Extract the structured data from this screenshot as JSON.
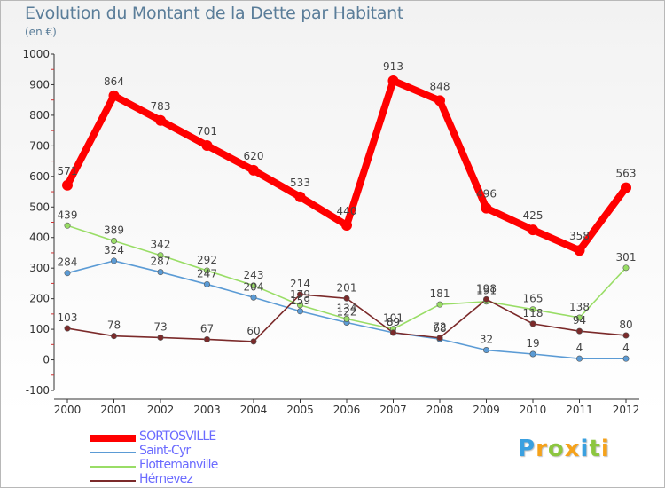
{
  "title": "Evolution du Montant de la Dette par Habitant",
  "subtitle": "(en €)",
  "chart_data": {
    "type": "line",
    "x": [
      "2000",
      "2001",
      "2002",
      "2003",
      "2004",
      "2005",
      "2006",
      "2007",
      "2008",
      "2009",
      "2010",
      "2011",
      "2012"
    ],
    "ylim": [
      -100,
      1000
    ],
    "yticks": [
      -100,
      0,
      100,
      200,
      300,
      400,
      500,
      600,
      700,
      800,
      900,
      1000
    ],
    "grid": false,
    "legend_position": "bottom-left",
    "series": [
      {
        "name": "SORTOSVILLE",
        "color": "#ff0000",
        "values": [
          571,
          864,
          783,
          701,
          620,
          533,
          440,
          913,
          848,
          496,
          425,
          358,
          563
        ]
      },
      {
        "name": "Saint-Cyr",
        "color": "#5b9bd5",
        "values": [
          284,
          324,
          287,
          247,
          204,
          159,
          122,
          89,
          68,
          32,
          19,
          4,
          4
        ]
      },
      {
        "name": "Flottemanville",
        "color": "#99dd66",
        "values": [
          439,
          389,
          342,
          292,
          243,
          179,
          134,
          101,
          181,
          191,
          165,
          138,
          301
        ]
      },
      {
        "name": "Hémevez",
        "color": "#7b2a2a",
        "values": [
          103,
          78,
          73,
          67,
          60,
          214,
          201,
          89,
          72,
          198,
          118,
          94,
          80
        ]
      }
    ]
  },
  "logo": {
    "letters": [
      "P",
      "r",
      "o",
      "x",
      "i",
      "t",
      "i"
    ],
    "colors": [
      "#3aa0e0",
      "#f5a21b",
      "#8cc63f",
      "#f5a21b",
      "#3aa0e0",
      "#8cc63f",
      "#f5a21b"
    ]
  }
}
